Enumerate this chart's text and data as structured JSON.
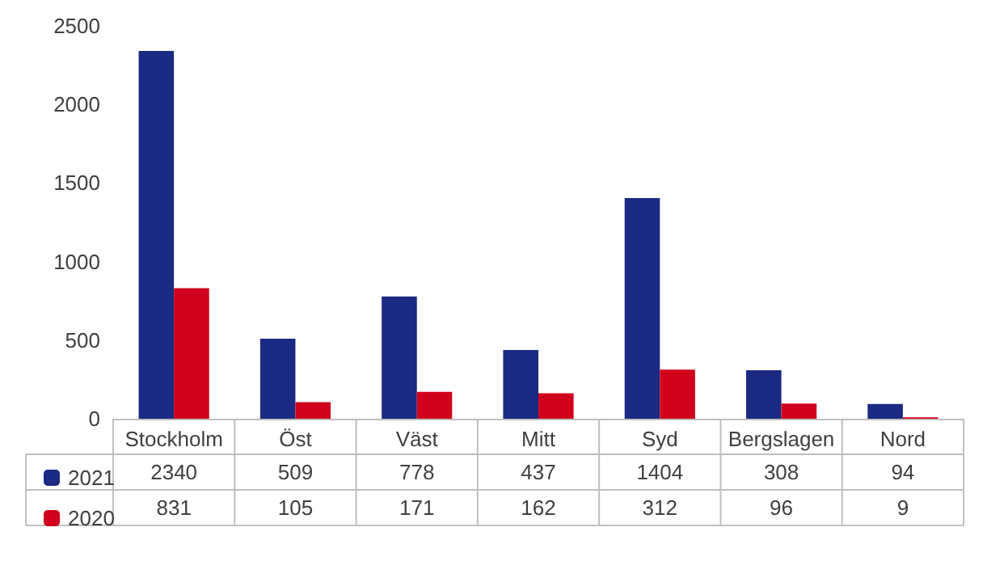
{
  "chart_data": {
    "type": "bar",
    "categories": [
      "Stockholm",
      "Öst",
      "Väst",
      "Mitt",
      "Syd",
      "Bergslagen",
      "Nord"
    ],
    "series": [
      {
        "name": "2021",
        "color": "#1b2a83",
        "values": [
          2340,
          509,
          778,
          437,
          1404,
          308,
          94
        ]
      },
      {
        "name": "2020",
        "color": "#d1001c",
        "values": [
          831,
          105,
          171,
          162,
          312,
          96,
          9
        ]
      }
    ],
    "ylim": [
      0,
      2500
    ],
    "yticks": [
      0,
      500,
      1000,
      1500,
      2000,
      2500
    ],
    "grid": false,
    "legend": "bottom left",
    "data_labels": true
  }
}
